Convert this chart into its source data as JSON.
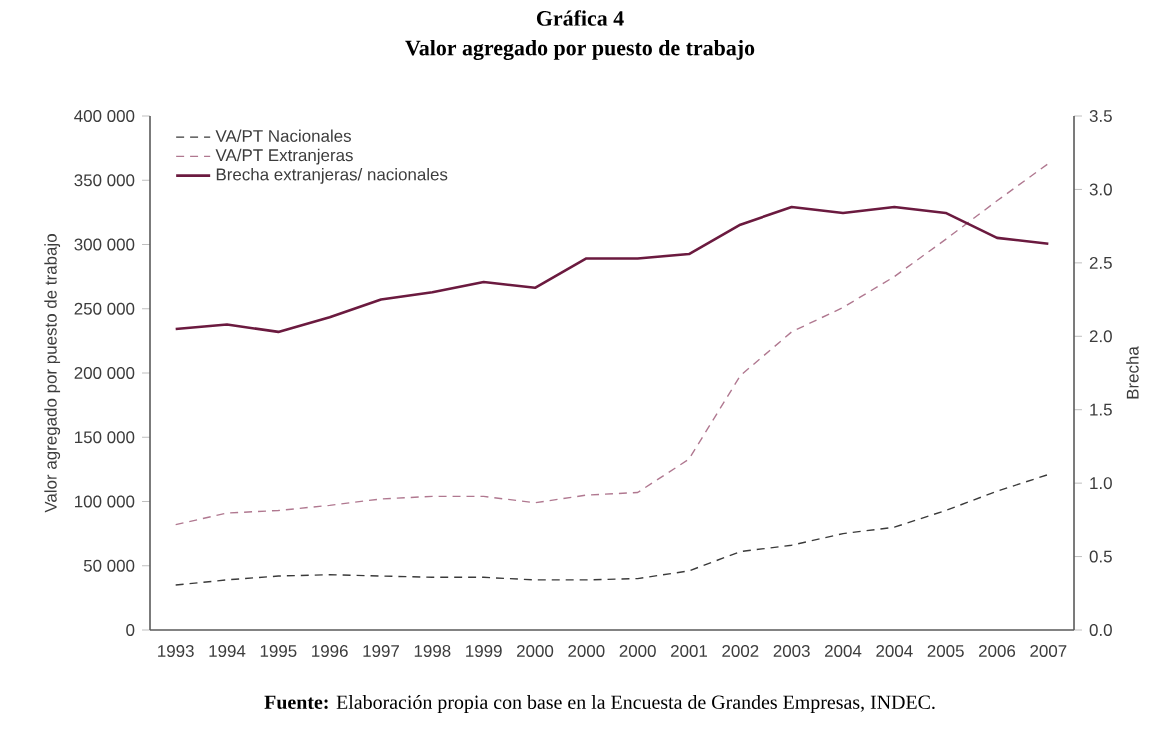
{
  "chart_data": {
    "type": "line",
    "title": "Gráfica 4",
    "subtitle": "Valor agregado por puesto de trabajo",
    "ylabel": "Valor agregado por puesto de trabajo",
    "y2label": "Brecha",
    "annotations": [
      "**Fuente:** Elaboración propia con base en la Encuesta de Grandes Empresas, INDEC."
    ],
    "categories": [
      "1993",
      "1994",
      "1995",
      "1996",
      "1997",
      "1998",
      "1999",
      "2000",
      "2000",
      "2000",
      "2001",
      "2002",
      "2003",
      "2004",
      "2004",
      "2005",
      "2006",
      "2007"
    ],
    "series": [
      {
        "name": "VA/PT Nacionales",
        "color": "#3a3a3a",
        "line_style": "dashed",
        "values": [
          35000,
          39000,
          42000,
          43000,
          42000,
          41000,
          41000,
          39000,
          39000,
          40000,
          46000,
          61000,
          66000,
          75000,
          80000,
          93000,
          108000,
          121000
        ]
      },
      {
        "name": "VA/PT Extranjeras",
        "color": "#b07890",
        "line_style": "dashed",
        "values": [
          82000,
          91000,
          93000,
          97000,
          102000,
          104000,
          104000,
          99000,
          105000,
          107000,
          133000,
          198000,
          232000,
          251000,
          275000,
          304000,
          334000,
          363000
        ]
      },
      {
        "name": "Brecha extranjeras/ nacionales",
        "color": "#6b1a3f",
        "line_style": "solid",
        "axis": "y2",
        "values": [
          2.05,
          2.08,
          2.03,
          2.13,
          2.25,
          2.3,
          2.37,
          2.33,
          2.53,
          2.53,
          2.56,
          2.76,
          2.88,
          2.84,
          2.88,
          2.84,
          2.67,
          2.63
        ]
      }
    ],
    "ylim": [
      0,
      400000
    ],
    "yticks": [
      0,
      {
        "value": 50000,
        "label": "50 000"
      },
      {
        "value": 100000,
        "label": "100 000"
      },
      {
        "value": 150000,
        "label": "150 000"
      },
      {
        "value": 200000,
        "label": "200 000"
      },
      {
        "value": 250000,
        "label": "250 000"
      },
      {
        "value": 300000,
        "label": "300 000"
      },
      {
        "value": 350000,
        "label": "350 000"
      },
      {
        "value": 400000,
        "label": "400 000"
      }
    ],
    "y2lim": [
      0,
      3.5
    ],
    "y2ticks": [
      {
        "value": 0,
        "label": "0.0"
      },
      0.5,
      {
        "value": 1,
        "label": "1.0"
      },
      1.5,
      {
        "value": 2,
        "label": "2.0"
      },
      2.5,
      {
        "value": 3,
        "label": "3.0"
      },
      3.5
    ],
    "legend": "top left"
  }
}
